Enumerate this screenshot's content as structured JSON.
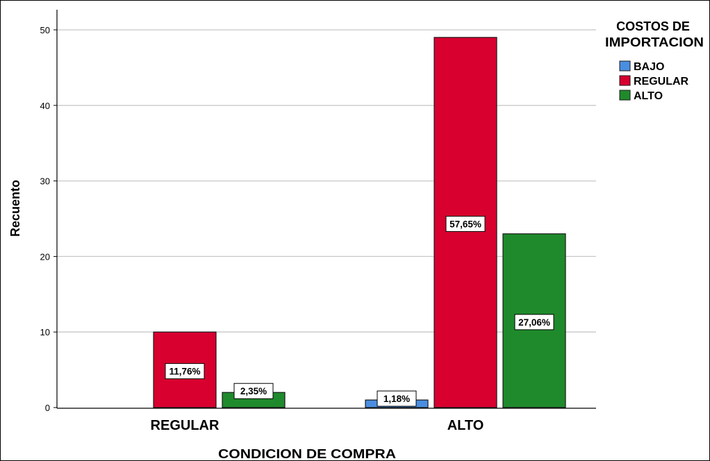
{
  "chart_data": {
    "type": "bar",
    "xlabel": "CONDICION DE COMPRA",
    "ylabel": "Recuento",
    "categories": [
      "REGULAR",
      "ALTO"
    ],
    "ylim": [
      0,
      52
    ],
    "yticks": [
      0,
      10,
      20,
      30,
      40,
      50
    ],
    "grid": true,
    "legend": {
      "title_line1": "COSTOS DE",
      "title_line2": "IMPORTACION",
      "placement": "right"
    },
    "series": [
      {
        "name": "BAJO",
        "color": "#4a8ee0",
        "values": [
          0,
          1
        ],
        "labels": [
          "",
          "1,18%"
        ]
      },
      {
        "name": "REGULAR",
        "color": "#d8002f",
        "values": [
          10,
          49
        ],
        "labels": [
          "11,76%",
          "57,65%"
        ]
      },
      {
        "name": "ALTO",
        "color": "#1f8a2c",
        "values": [
          2,
          23
        ],
        "labels": [
          "2,35%",
          "27,06%"
        ]
      }
    ]
  }
}
